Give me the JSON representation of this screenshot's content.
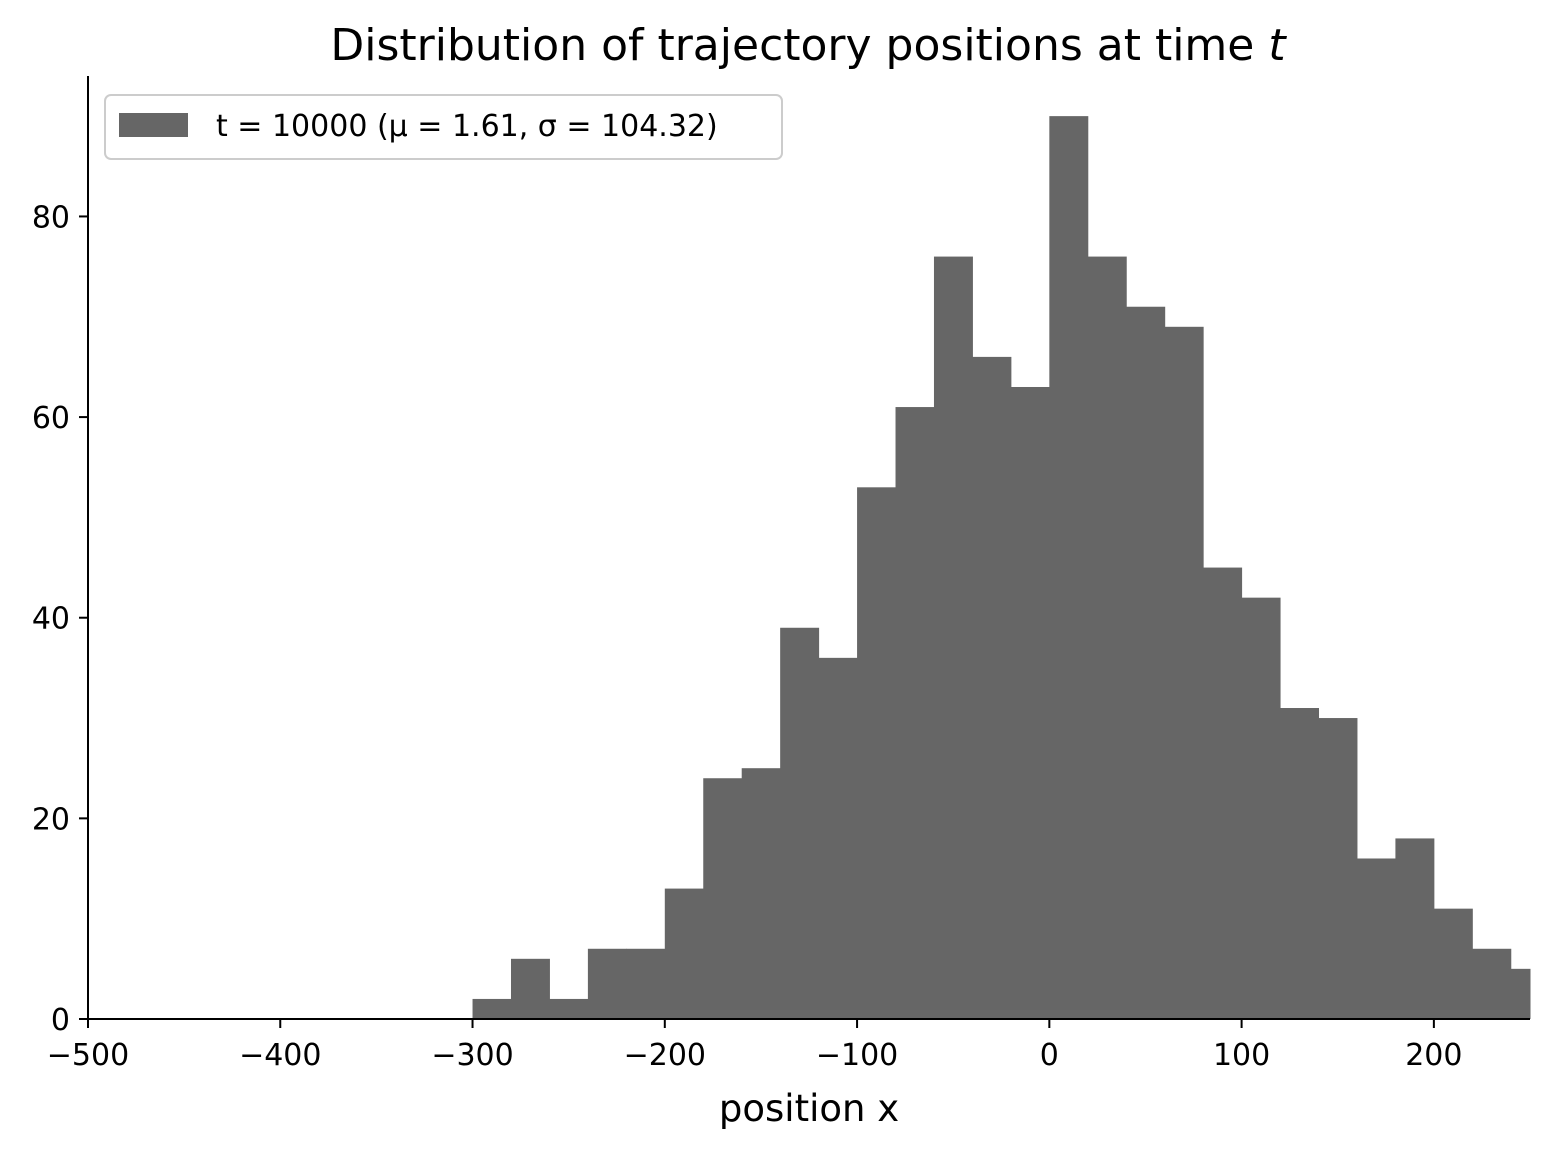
{
  "chart_data": {
    "type": "bar",
    "subtype": "histogram",
    "title": "Distribution of trajectory positions at time t",
    "xlabel": "position x",
    "ylabel": "",
    "xlim": [
      -500,
      250
    ],
    "ylim": [
      0,
      94
    ],
    "grid": false,
    "legend_position": "top-left",
    "x_ticks": [
      -500,
      -400,
      -300,
      -200,
      -100,
      0,
      100,
      200
    ],
    "x_tick_labels": [
      "−500",
      "−400",
      "−300",
      "−200",
      "−100",
      "0",
      "100",
      "200"
    ],
    "y_ticks": [
      0,
      20,
      40,
      60,
      80
    ],
    "y_tick_labels": [
      "0",
      "20",
      "40",
      "60",
      "80"
    ],
    "bar_color": "#666666",
    "series": [
      {
        "name": "t = 10000 (μ = 1.61, σ = 104.32)",
        "bin_edges": [
          -300,
          -280,
          -260,
          -240,
          -220,
          -200,
          -180,
          -160,
          -140,
          -120,
          -100,
          -80,
          -60,
          -40,
          -20,
          0,
          20,
          40,
          60,
          80,
          100,
          120,
          140,
          160,
          180,
          200,
          220,
          240,
          250
        ],
        "values": [
          2,
          6,
          2,
          7,
          7,
          13,
          24,
          25,
          39,
          36,
          53,
          61,
          76,
          66,
          63,
          90,
          76,
          71,
          69,
          45,
          42,
          31,
          30,
          16,
          18,
          11,
          7,
          5
        ]
      }
    ]
  }
}
